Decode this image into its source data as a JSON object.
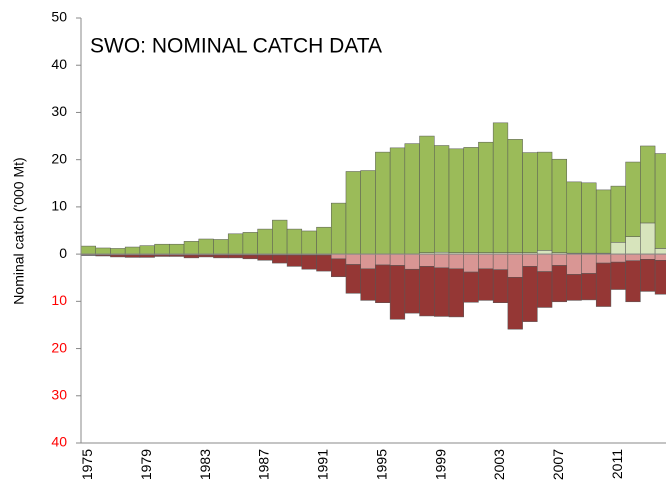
{
  "chart_data": {
    "type": "stacked_bar",
    "title": "SWO: NOMINAL CATCH DATA",
    "y_label": "Nominal catch ('000 Mt)",
    "categories": [
      "1975",
      null,
      null,
      null,
      "1979",
      null,
      null,
      null,
      "1983",
      null,
      null,
      null,
      "1987",
      null,
      null,
      null,
      "1991",
      null,
      null,
      null,
      "1995",
      null,
      null,
      null,
      "1999",
      null,
      null,
      null,
      "2003",
      null,
      null,
      null,
      "2007",
      null,
      null,
      null,
      "2011",
      null,
      null,
      null
    ],
    "series": [
      {
        "color": "#d7e4bc",
        "values": [
          0,
          0,
          0,
          0,
          0,
          0,
          0,
          0,
          0,
          0,
          0,
          0,
          0,
          0,
          0,
          0,
          0,
          0,
          0,
          0,
          0,
          0,
          0,
          0.3,
          0.4,
          0.3,
          0.3,
          0.3,
          0.3,
          0.3,
          0.3,
          0.8,
          0.3,
          0.2,
          0.2,
          0.2,
          2.5,
          3.7,
          6.6,
          1.2
        ]
      },
      {
        "color": "#9bbb59",
        "values": [
          1.7,
          1.3,
          1.2,
          1.5,
          1.8,
          2.1,
          2.1,
          2.7,
          3.2,
          3.1,
          4.3,
          4.6,
          5.3,
          7.2,
          5.3,
          4.9,
          5.7,
          10.8,
          17.5,
          17.7,
          21.6,
          22.5,
          23.4,
          24.7,
          22.6,
          22.0,
          22.3,
          23.4,
          27.5,
          24.0,
          21.2,
          20.8,
          19.8,
          15.1,
          14.9,
          13.4,
          11.9,
          15.8,
          16.3,
          20.1
        ]
      },
      {
        "color": "#d99694",
        "values": [
          -0.2,
          -0.2,
          -0.2,
          -0.2,
          -0.2,
          -0.2,
          -0.2,
          -0.2,
          -0.2,
          -0.2,
          -0.2,
          -0.2,
          -0.2,
          -0.2,
          -0.2,
          -0.2,
          -0.2,
          -1.0,
          -2.2,
          -3.1,
          -2.3,
          -2.4,
          -3.2,
          -2.6,
          -2.9,
          -3.1,
          -3.8,
          -3.1,
          -3.3,
          -4.9,
          -2.6,
          -3.7,
          -2.4,
          -4.3,
          -4.1,
          -1.9,
          -1.7,
          -1.4,
          -1.1,
          -1.3
        ]
      },
      {
        "color": "#953735",
        "values": [
          -0.1,
          -0.2,
          -0.4,
          -0.5,
          -0.5,
          -0.3,
          -0.3,
          -0.6,
          -0.4,
          -0.6,
          -0.6,
          -0.8,
          -1.1,
          -1.7,
          -2.4,
          -3.0,
          -3.4,
          -3.8,
          -6.1,
          -6.7,
          -8.0,
          -11.4,
          -9.3,
          -10.5,
          -10.3,
          -10.2,
          -6.4,
          -6.7,
          -7.0,
          -11.0,
          -11.7,
          -7.6,
          -7.7,
          -5.5,
          -5.6,
          -9.2,
          -5.8,
          -8.7,
          -6.8,
          -7.2
        ]
      }
    ],
    "ylim": [
      -40,
      50
    ],
    "yticks": [
      {
        "value": -40,
        "label": "40"
      },
      {
        "value": -30,
        "label": "30"
      },
      {
        "value": -20,
        "label": "20"
      },
      {
        "value": -10,
        "label": "10"
      },
      0,
      10,
      20,
      30,
      40,
      50
    ],
    "negative_tick_color": "#ff0000",
    "grid": false
  }
}
